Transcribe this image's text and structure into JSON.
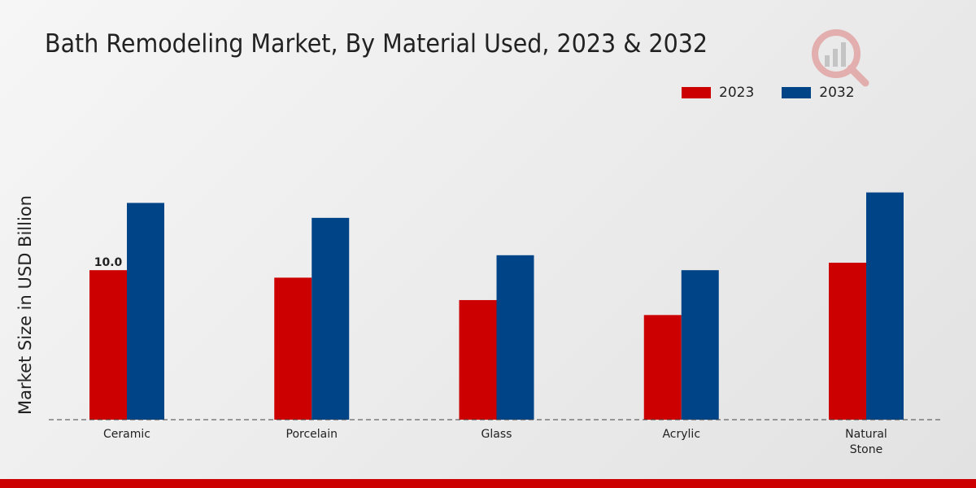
{
  "chart_data": {
    "type": "bar",
    "title": "Bath Remodeling Market, By Material Used, 2023 & 2032",
    "ylabel": "Market Size in USD Billion",
    "xlabel": "",
    "ylim": [
      0,
      21
    ],
    "categories": [
      "Ceramic",
      "Porcelain",
      "Glass",
      "Acrylic",
      "Natural Stone"
    ],
    "category_lines": [
      [
        "Ceramic"
      ],
      [
        "Porcelain"
      ],
      [
        "Glass"
      ],
      [
        "Acrylic"
      ],
      [
        "Natural",
        "Stone"
      ]
    ],
    "series": [
      {
        "name": "2023",
        "color": "#cc0000",
        "values": [
          10.0,
          9.5,
          8.0,
          7.0,
          10.5
        ]
      },
      {
        "name": "2032",
        "color": "#004488",
        "values": [
          14.5,
          13.5,
          11.0,
          10.0,
          15.2
        ]
      }
    ],
    "data_labels": [
      {
        "series": 0,
        "index": 0,
        "text": "10.0"
      }
    ],
    "legend_position": "top-right"
  }
}
